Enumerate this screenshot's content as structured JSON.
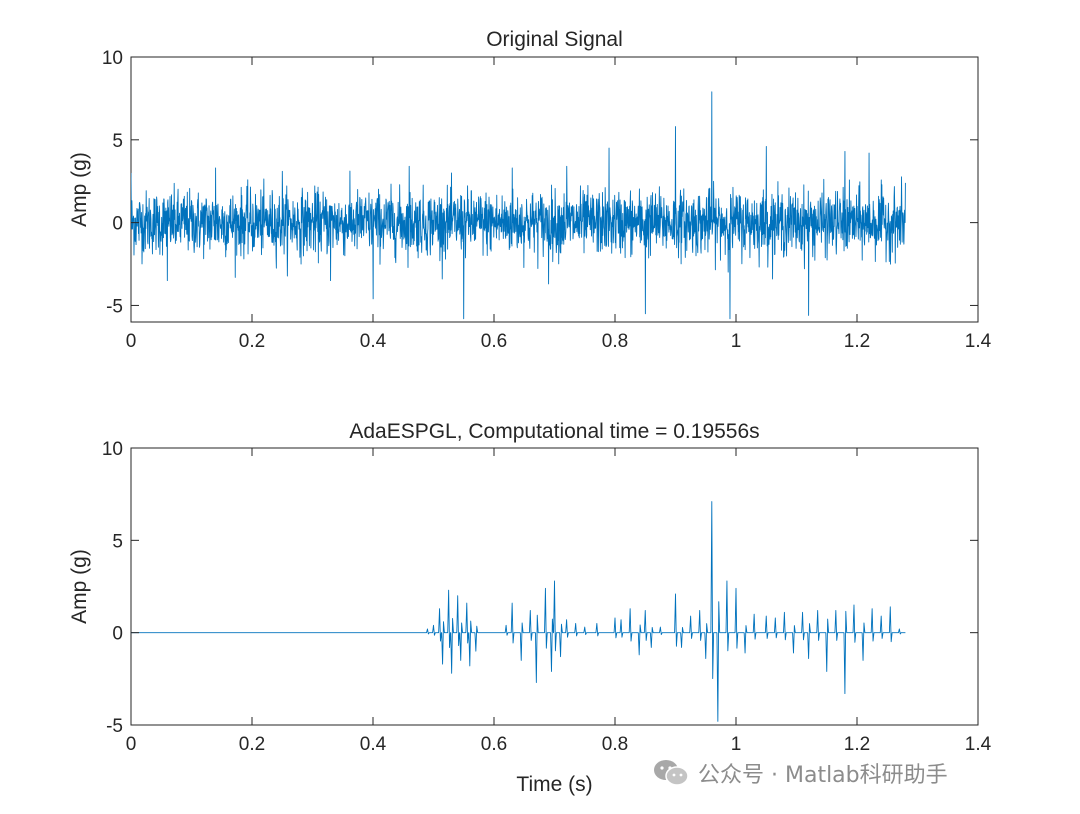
{
  "chart_data": [
    {
      "type": "line",
      "title": "Original Signal",
      "xlabel": "",
      "ylabel": "Amp (g)",
      "xlim": [
        0,
        1.4
      ],
      "ylim": [
        -6,
        10
      ],
      "xticks": [
        0,
        0.2,
        0.4,
        0.6,
        0.8,
        1,
        1.2,
        1.4
      ],
      "xtick_labels": [
        "0",
        "0.2",
        "0.4",
        "0.6",
        "0.8",
        "1",
        "1.2",
        "1.4"
      ],
      "yticks": [
        -5,
        0,
        5,
        10
      ],
      "ytick_labels": [
        "-5",
        "0",
        "5",
        "10"
      ],
      "color": "#0072BD",
      "signal_duration": 1.28,
      "grid": false,
      "series": [
        {
          "description": "dense broadband vibration noise, roughly +/-3 g, with impulses",
          "x": [
            0,
            0.06,
            0.14,
            0.25,
            0.33,
            0.4,
            0.46,
            0.55,
            0.63,
            0.69,
            0.72,
            0.79,
            0.85,
            0.9,
            0.96,
            0.99,
            1.05,
            1.12,
            1.18,
            1.22,
            1.28
          ],
          "y": [
            3.0,
            -3.5,
            3.3,
            3.1,
            -3.5,
            -4.6,
            3.4,
            -5.8,
            3.3,
            -3.7,
            3.4,
            4.5,
            -5.5,
            5.8,
            7.9,
            -5.8,
            4.6,
            -5.6,
            4.3,
            4.2,
            2.4
          ]
        }
      ]
    },
    {
      "type": "line",
      "title": "AdaESPGL, Computational time = 0.19556s",
      "xlabel": "Time (s)",
      "ylabel": "Amp (g)",
      "xlim": [
        0,
        1.4
      ],
      "ylim": [
        -5,
        10
      ],
      "xticks": [
        0,
        0.2,
        0.4,
        0.6,
        0.8,
        1,
        1.2,
        1.4
      ],
      "xtick_labels": [
        "0",
        "0.2",
        "0.4",
        "0.6",
        "0.8",
        "1",
        "1.2",
        "1.4"
      ],
      "yticks": [
        -5,
        0,
        5,
        10
      ],
      "ytick_labels": [
        "-5",
        "0",
        "5",
        "10"
      ],
      "color": "#0072BD",
      "signal_duration": 1.28,
      "grid": false,
      "series": [
        {
          "description": "sparse extracted impulses; zero elsewhere",
          "x": [
            0.49,
            0.5,
            0.51,
            0.515,
            0.525,
            0.53,
            0.54,
            0.545,
            0.555,
            0.56,
            0.57,
            0.62,
            0.63,
            0.645,
            0.66,
            0.67,
            0.685,
            0.695,
            0.7,
            0.71,
            0.72,
            0.735,
            0.75,
            0.77,
            0.8,
            0.81,
            0.825,
            0.84,
            0.85,
            0.86,
            0.875,
            0.9,
            0.91,
            0.925,
            0.94,
            0.95,
            0.96,
            0.97,
            0.985,
            1.0,
            1.015,
            1.03,
            1.05,
            1.065,
            1.08,
            1.095,
            1.11,
            1.12,
            1.135,
            1.15,
            1.165,
            1.18,
            1.195,
            1.21,
            1.225,
            1.24,
            1.255,
            1.27
          ],
          "y": [
            0.2,
            0.4,
            1.3,
            -1.7,
            2.3,
            -2.2,
            2.0,
            -1.5,
            1.6,
            -1.8,
            -1.0,
            0.4,
            1.6,
            -1.5,
            1.2,
            -2.7,
            2.4,
            -2.1,
            2.8,
            -1.3,
            0.7,
            0.5,
            0.3,
            0.5,
            0.8,
            0.7,
            1.3,
            -1.2,
            1.2,
            -0.8,
            0.3,
            2.1,
            -0.8,
            0.9,
            1.2,
            -1.4,
            7.1,
            -4.8,
            2.8,
            2.4,
            -1.1,
            1.0,
            0.9,
            0.8,
            1.1,
            -1.1,
            1.1,
            -1.4,
            1.2,
            -2.1,
            1.2,
            -3.3,
            1.5,
            -1.5,
            1.3,
            0.9,
            1.4,
            0.2
          ]
        }
      ]
    }
  ],
  "watermark": {
    "text": "公众号 · Matlab科研助手",
    "icon": "wechat-icon"
  }
}
